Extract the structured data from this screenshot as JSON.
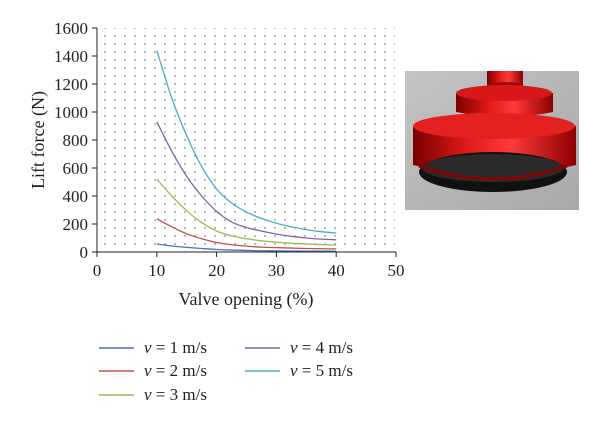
{
  "chart_data": {
    "type": "line",
    "title": "",
    "xlabel": "Valve opening (%)",
    "ylabel": "Lift force (N)",
    "xlim": [
      0,
      50
    ],
    "ylim": [
      0,
      1600
    ],
    "xticks": [
      "0",
      "10",
      "20",
      "30",
      "40",
      "50"
    ],
    "yticks": [
      "0",
      "200",
      "400",
      "600",
      "800",
      "1000",
      "1200",
      "1400",
      "1600"
    ],
    "grid": "dotted",
    "legend_position": "bottom",
    "x": [
      10,
      12.5,
      15,
      17.5,
      20,
      22.5,
      25,
      27.5,
      30,
      32.5,
      35,
      37.5,
      40
    ],
    "series": [
      {
        "name": "v = 1 m/s",
        "var": "v",
        "eq": " = 1 m/s",
        "color": "#4472c4",
        "values": [
          57,
          43,
          33,
          25,
          18,
          14,
          11,
          9,
          8,
          7,
          6,
          6,
          5
        ]
      },
      {
        "name": "v = 2 m/s",
        "var": "v",
        "eq": " = 2 m/s",
        "color": "#c0504d",
        "values": [
          238,
          180,
          130,
          95,
          68,
          52,
          42,
          35,
          31,
          28,
          25,
          23,
          22
        ]
      },
      {
        "name": "v = 3 m/s",
        "var": "v",
        "eq": " = 3 m/s",
        "color": "#9bbb59",
        "values": [
          520,
          400,
          295,
          210,
          150,
          115,
          95,
          80,
          70,
          62,
          57,
          53,
          50
        ]
      },
      {
        "name": "v = 4 m/s",
        "var": "v",
        "eq": " = 4 m/s",
        "color": "#8064a2",
        "values": [
          930,
          720,
          540,
          400,
          290,
          215,
          175,
          150,
          128,
          112,
          100,
          92,
          87
        ]
      },
      {
        "name": "v = 5 m/s",
        "var": "v",
        "eq": " = 5 m/s",
        "color": "#4bacc6",
        "values": [
          1440,
          1100,
          830,
          610,
          450,
          350,
          285,
          240,
          205,
          180,
          160,
          145,
          135
        ]
      }
    ]
  },
  "photo": {
    "name": "suction-cup-model"
  }
}
